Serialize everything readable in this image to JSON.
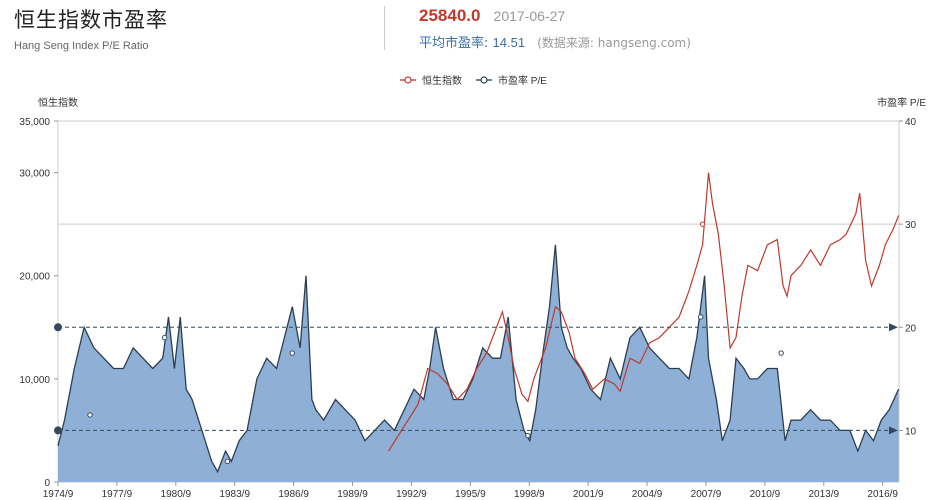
{
  "header": {
    "title": "恒生指数市盈率",
    "subtitle": "Hang Seng Index P/E Ratio",
    "price": "25840.0",
    "date": "2017-06-27",
    "pe_label": "平均市盈率:",
    "pe_value": "14.51",
    "source": "(数据来源: hangseng.com)"
  },
  "colors": {
    "index": "#c0392b",
    "pe_line": "#2c3e50",
    "pe_fill": "#8fb0d6"
  },
  "chart_data": {
    "type": "line",
    "title": "恒生指数市盈率",
    "legend": [
      "恒生指数",
      "市盈率 P/E"
    ],
    "legend_position": "top-center",
    "y_left_label": "恒生指数",
    "y_right_label": "市盈率 P/E",
    "y_left_range": [
      0,
      35000
    ],
    "y_left_ticks": [
      "0",
      "10,000",
      "20,000",
      "30,000",
      "35,000"
    ],
    "y_left_tick_values": [
      0,
      10000,
      20000,
      30000,
      35000
    ],
    "y_right_range": [
      5,
      40
    ],
    "y_right_ticks": [
      "10",
      "20",
      "30",
      "40"
    ],
    "y_right_tick_values": [
      10,
      20,
      30,
      40
    ],
    "x_range": [
      1974.67,
      2017.5
    ],
    "x_ticks": [
      "1974/9",
      "1977/9",
      "1980/9",
      "1983/9",
      "1986/9",
      "1989/9",
      "1992/9",
      "1995/9",
      "1998/9",
      "2001/9",
      "2004/9",
      "2007/9",
      "2010/9",
      "2013/9",
      "2016/9"
    ],
    "x_tick_values": [
      1974.67,
      1977.67,
      1980.67,
      1983.67,
      1986.67,
      1989.67,
      1992.67,
      1995.67,
      1998.67,
      2001.67,
      2004.67,
      2007.67,
      2010.67,
      2013.67,
      2016.67
    ],
    "reference_lines_pe": [
      10,
      20
    ],
    "gridline_pe": 30,
    "series": [
      {
        "name": "恒生指数",
        "axis": "left",
        "x": [
          1991.5,
          1992.0,
          1992.5,
          1993.0,
          1993.5,
          1994.0,
          1994.5,
          1995.0,
          1995.5,
          1996.0,
          1996.5,
          1997.0,
          1997.3,
          1997.6,
          1997.9,
          1998.3,
          1998.6,
          1998.9,
          1999.5,
          2000.0,
          2000.3,
          2000.7,
          2001.0,
          2001.5,
          2001.9,
          2002.5,
          2003.0,
          2003.3,
          2003.8,
          2004.3,
          2004.8,
          2005.3,
          2005.8,
          2006.3,
          2006.8,
          2007.2,
          2007.5,
          2007.8,
          2008.0,
          2008.3,
          2008.6,
          2008.9,
          2009.2,
          2009.5,
          2009.8,
          2010.3,
          2010.8,
          2011.3,
          2011.6,
          2011.8,
          2012.0,
          2012.5,
          2013.0,
          2013.5,
          2014.0,
          2014.5,
          2014.8,
          2015.3,
          2015.5,
          2015.8,
          2016.1,
          2016.5,
          2016.8,
          2017.2,
          2017.48
        ],
        "y": [
          3000,
          4500,
          6000,
          7500,
          11000,
          10500,
          9500,
          8000,
          9000,
          11000,
          12500,
          15000,
          16500,
          14000,
          11000,
          8500,
          7800,
          10000,
          13000,
          17000,
          16500,
          14500,
          12000,
          10500,
          9000,
          10000,
          9500,
          8800,
          12000,
          11500,
          13500,
          14000,
          15000,
          16000,
          18500,
          21000,
          23000,
          30000,
          27000,
          24000,
          19000,
          13000,
          14000,
          18000,
          21000,
          20500,
          23000,
          23500,
          19000,
          18000,
          20000,
          21000,
          22500,
          21000,
          23000,
          23500,
          24000,
          26000,
          28000,
          21500,
          19000,
          21000,
          23000,
          24500,
          25840
        ]
      },
      {
        "name": "市盈率 P/E",
        "axis": "right",
        "x": [
          1974.67,
          1975.0,
          1975.5,
          1976.0,
          1976.5,
          1977.0,
          1977.5,
          1978.0,
          1978.5,
          1979.0,
          1979.5,
          1980.0,
          1980.3,
          1980.6,
          1980.9,
          1981.2,
          1981.5,
          1982.0,
          1982.5,
          1982.8,
          1983.2,
          1983.5,
          1983.9,
          1984.3,
          1984.8,
          1985.3,
          1985.8,
          1986.2,
          1986.6,
          1987.0,
          1987.3,
          1987.6,
          1987.8,
          1988.2,
          1988.8,
          1989.3,
          1989.8,
          1990.3,
          1990.8,
          1991.3,
          1991.8,
          1992.3,
          1992.8,
          1993.3,
          1993.6,
          1993.9,
          1994.3,
          1994.8,
          1995.3,
          1995.8,
          1996.3,
          1996.8,
          1997.2,
          1997.6,
          1998.0,
          1998.4,
          1998.7,
          1999.0,
          1999.4,
          1999.7,
          2000.0,
          2000.3,
          2000.6,
          2000.9,
          2001.3,
          2001.8,
          2002.3,
          2002.8,
          2003.3,
          2003.8,
          2004.3,
          2004.8,
          2005.3,
          2005.8,
          2006.3,
          2006.8,
          2007.2,
          2007.6,
          2007.8,
          2008.2,
          2008.5,
          2008.9,
          2009.2,
          2009.6,
          2009.9,
          2010.3,
          2010.8,
          2011.3,
          2011.7,
          2012.0,
          2012.5,
          2013.0,
          2013.5,
          2014.0,
          2014.5,
          2015.0,
          2015.4,
          2015.8,
          2016.2,
          2016.6,
          2017.0,
          2017.48
        ],
        "y": [
          8.5,
          11,
          16,
          20,
          18,
          17,
          16,
          16,
          18,
          17,
          16,
          17,
          21,
          16,
          21,
          14,
          13,
          10,
          7,
          6,
          8,
          7,
          9,
          10,
          15,
          17,
          16,
          19,
          22,
          18,
          25,
          13,
          12,
          11,
          13,
          12,
          11,
          9,
          10,
          11,
          10,
          12,
          14,
          13,
          16,
          20,
          16,
          13,
          13,
          15,
          18,
          17,
          17,
          21,
          13,
          10,
          9,
          12,
          18,
          22,
          28,
          20,
          18,
          17,
          16,
          14,
          13,
          17,
          15,
          19,
          20,
          18,
          17,
          16,
          16,
          15,
          19,
          25,
          17,
          13,
          9,
          11,
          17,
          16,
          15,
          15,
          16,
          16,
          9,
          11,
          11,
          12,
          11,
          11,
          10,
          10,
          8,
          10,
          9,
          11,
          12,
          14
        ]
      }
    ],
    "markers_index": [
      [
        2007.5,
        25000
      ]
    ],
    "markers_pe": [
      [
        1974.67,
        20
      ],
      [
        1974.67,
        10
      ],
      [
        1976.3,
        11.5
      ],
      [
        1980.1,
        19
      ],
      [
        1983.3,
        7
      ],
      [
        1986.6,
        17.5
      ],
      [
        1998.6,
        9.5
      ],
      [
        2007.4,
        21
      ],
      [
        2011.5,
        17.5
      ]
    ]
  }
}
